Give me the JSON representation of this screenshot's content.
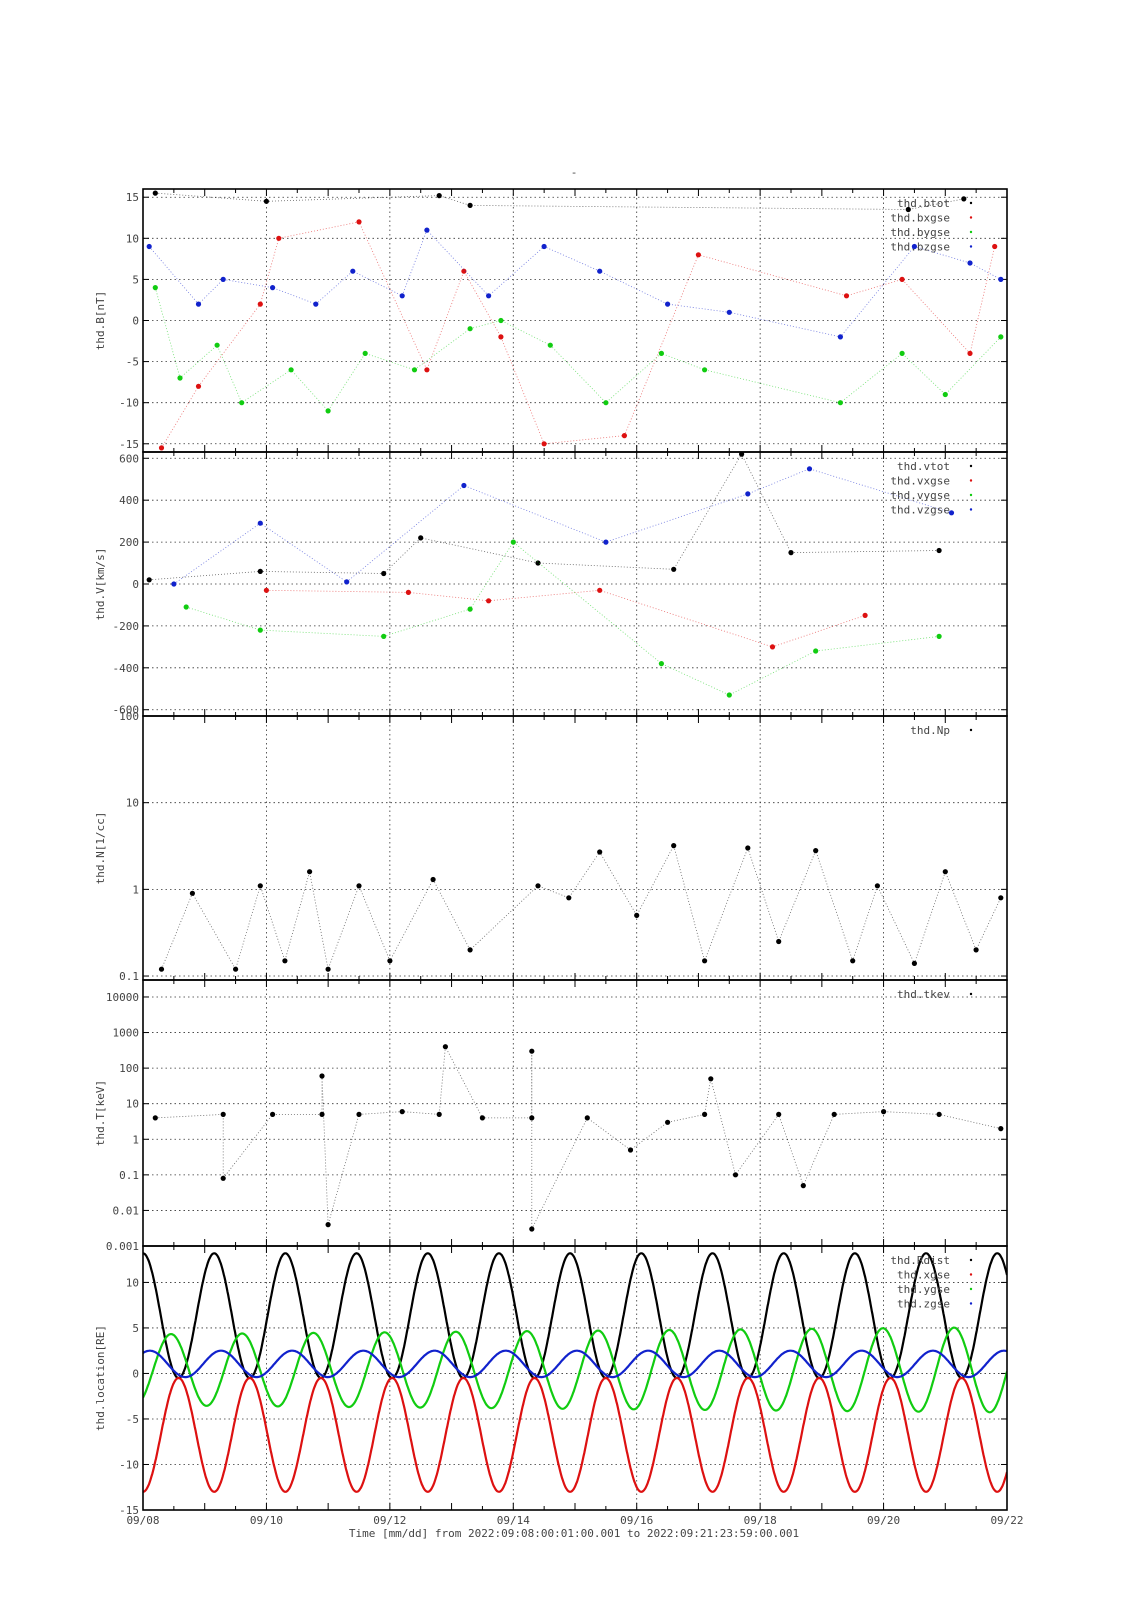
{
  "figure": {
    "top_mark": "-",
    "x_axis_title": "Time [mm/dd]  from 2022:09:08:00:01:00.001  to  2022:09:21:23:59:00.001",
    "x_tick_labels": [
      "09/08",
      "09/10",
      "09/12",
      "09/14",
      "09/16",
      "09/18",
      "09/20",
      "09/22"
    ]
  },
  "chart_data": [
    {
      "type": "scatter",
      "ylabel": "thd.B[nT]",
      "ylim": [
        -16,
        16
      ],
      "yticks": [
        -15,
        -10,
        -5,
        0,
        5,
        10,
        15
      ],
      "ytick_labels": [
        "-15",
        "-10",
        "-5",
        "0",
        "5",
        "10",
        "15"
      ],
      "xlim": [
        0,
        14
      ],
      "grid": true,
      "legend_placement": "top-right",
      "series": [
        {
          "name": "thd.btot",
          "color": "#000000",
          "points": [
            [
              0.2,
              15.5
            ],
            [
              2.0,
              14.5
            ],
            [
              4.8,
              15.2
            ],
            [
              5.3,
              14.0
            ],
            [
              12.4,
              13.5
            ],
            [
              13.3,
              14.8
            ]
          ]
        },
        {
          "name": "thd.bxgse",
          "color": "#dd1111",
          "points": [
            [
              0.3,
              -15.5
            ],
            [
              0.9,
              -8.0
            ],
            [
              1.9,
              2.0
            ],
            [
              2.2,
              10.0
            ],
            [
              3.5,
              12.0
            ],
            [
              4.6,
              -6.0
            ],
            [
              5.2,
              6.0
            ],
            [
              5.8,
              -2.0
            ],
            [
              6.5,
              -15.0
            ],
            [
              7.8,
              -14.0
            ],
            [
              9.0,
              8.0
            ],
            [
              11.4,
              3.0
            ],
            [
              12.3,
              5.0
            ],
            [
              13.4,
              -4.0
            ],
            [
              13.8,
              9.0
            ]
          ]
        },
        {
          "name": "thd.bygse",
          "color": "#11cc11",
          "points": [
            [
              0.2,
              4.0
            ],
            [
              0.6,
              -7.0
            ],
            [
              1.2,
              -3.0
            ],
            [
              1.6,
              -10.0
            ],
            [
              2.4,
              -6.0
            ],
            [
              3.0,
              -11.0
            ],
            [
              3.6,
              -4.0
            ],
            [
              4.4,
              -6.0
            ],
            [
              5.3,
              -1.0
            ],
            [
              5.8,
              0.0
            ],
            [
              6.6,
              -3.0
            ],
            [
              7.5,
              -10.0
            ],
            [
              8.4,
              -4.0
            ],
            [
              9.1,
              -6.0
            ],
            [
              11.3,
              -10.0
            ],
            [
              12.3,
              -4.0
            ],
            [
              13.0,
              -9.0
            ],
            [
              13.9,
              -2.0
            ]
          ]
        },
        {
          "name": "thd.bzgse",
          "color": "#1122cc",
          "points": [
            [
              0.1,
              9.0
            ],
            [
              0.9,
              2.0
            ],
            [
              1.3,
              5.0
            ],
            [
              2.1,
              4.0
            ],
            [
              2.8,
              2.0
            ],
            [
              3.4,
              6.0
            ],
            [
              4.2,
              3.0
            ],
            [
              4.6,
              11.0
            ],
            [
              5.6,
              3.0
            ],
            [
              6.5,
              9.0
            ],
            [
              7.4,
              6.0
            ],
            [
              8.5,
              2.0
            ],
            [
              9.5,
              1.0
            ],
            [
              11.3,
              -2.0
            ],
            [
              12.5,
              9.0
            ],
            [
              13.4,
              7.0
            ],
            [
              13.9,
              5.0
            ]
          ]
        }
      ]
    },
    {
      "type": "scatter",
      "ylabel": "thd.V[km/s]",
      "ylim": [
        -630,
        630
      ],
      "yticks": [
        -600,
        -400,
        -200,
        0,
        200,
        400,
        600
      ],
      "ytick_labels": [
        "-600",
        "-400",
        "-200",
        "0",
        "200",
        "400",
        "600"
      ],
      "xlim": [
        0,
        14
      ],
      "grid": true,
      "legend_placement": "top-right",
      "series": [
        {
          "name": "thd.vtot",
          "color": "#000000",
          "points": [
            [
              0.1,
              20
            ],
            [
              1.9,
              60
            ],
            [
              3.9,
              50
            ],
            [
              4.5,
              220
            ],
            [
              6.4,
              100
            ],
            [
              8.6,
              70
            ],
            [
              9.7,
              620
            ],
            [
              10.5,
              150
            ],
            [
              12.9,
              160
            ]
          ]
        },
        {
          "name": "thd.vxgse",
          "color": "#dd1111",
          "points": [
            [
              2.0,
              -30
            ],
            [
              4.3,
              -40
            ],
            [
              5.6,
              -80
            ],
            [
              7.4,
              -30
            ],
            [
              10.2,
              -300
            ],
            [
              11.7,
              -150
            ]
          ]
        },
        {
          "name": "thd.vygse",
          "color": "#11cc11",
          "points": [
            [
              0.7,
              -110
            ],
            [
              1.9,
              -220
            ],
            [
              3.9,
              -250
            ],
            [
              5.3,
              -120
            ],
            [
              6.0,
              200
            ],
            [
              8.4,
              -380
            ],
            [
              9.5,
              -530
            ],
            [
              10.9,
              -320
            ],
            [
              12.9,
              -250
            ]
          ]
        },
        {
          "name": "thd.vzgse",
          "color": "#1122cc",
          "points": [
            [
              0.5,
              0
            ],
            [
              1.9,
              290
            ],
            [
              3.3,
              10
            ],
            [
              5.2,
              470
            ],
            [
              7.5,
              200
            ],
            [
              9.8,
              430
            ],
            [
              10.8,
              550
            ],
            [
              13.1,
              340
            ]
          ]
        }
      ]
    },
    {
      "type": "scatter",
      "ylabel": "thd.N[1/cc]",
      "y_scale": "log",
      "ylim": [
        0.09,
        100
      ],
      "yticks": [
        0.1,
        1,
        10,
        100
      ],
      "ytick_labels": [
        "0.1",
        "1",
        "10",
        "100"
      ],
      "xlim": [
        0,
        14
      ],
      "grid": true,
      "legend_placement": "top-right",
      "series": [
        {
          "name": "thd.Np",
          "color": "#000000",
          "points": [
            [
              0.3,
              0.12
            ],
            [
              0.8,
              0.9
            ],
            [
              1.5,
              0.12
            ],
            [
              1.9,
              1.1
            ],
            [
              2.3,
              0.15
            ],
            [
              2.7,
              1.6
            ],
            [
              3.0,
              0.12
            ],
            [
              3.5,
              1.1
            ],
            [
              4.0,
              0.15
            ],
            [
              4.7,
              1.3
            ],
            [
              5.3,
              0.2
            ],
            [
              6.4,
              1.1
            ],
            [
              6.9,
              0.8
            ],
            [
              7.4,
              2.7
            ],
            [
              8.0,
              0.5
            ],
            [
              8.6,
              3.2
            ],
            [
              9.1,
              0.15
            ],
            [
              9.8,
              3.0
            ],
            [
              10.3,
              0.25
            ],
            [
              10.9,
              2.8
            ],
            [
              11.5,
              0.15
            ],
            [
              11.9,
              1.1
            ],
            [
              12.5,
              0.14
            ],
            [
              13.0,
              1.6
            ],
            [
              13.5,
              0.2
            ],
            [
              13.9,
              0.8
            ]
          ]
        }
      ]
    },
    {
      "type": "scatter",
      "ylabel": "thd.T[keV]",
      "y_scale": "log",
      "ylim": [
        0.001,
        30000
      ],
      "yticks": [
        0.001,
        0.01,
        0.1,
        1,
        10,
        100,
        1000,
        10000
      ],
      "ytick_labels": [
        "0.001",
        "0.01",
        "0.1",
        "1",
        "10",
        "100",
        "1000",
        "10000"
      ],
      "xlim": [
        0,
        14
      ],
      "grid": true,
      "legend_placement": "top-right",
      "series": [
        {
          "name": "thd.tkev",
          "color": "#000000",
          "points": [
            [
              0.2,
              4
            ],
            [
              1.3,
              5
            ],
            [
              1.3,
              0.08
            ],
            [
              2.1,
              5
            ],
            [
              2.9,
              5
            ],
            [
              3.5,
              5
            ],
            [
              4.2,
              6
            ],
            [
              4.8,
              5
            ],
            [
              5.5,
              4
            ],
            [
              6.3,
              4
            ],
            [
              7.2,
              4
            ],
            [
              7.9,
              0.5
            ],
            [
              8.5,
              3
            ],
            [
              9.1,
              5
            ],
            [
              9.6,
              0.1
            ],
            [
              10.3,
              5
            ],
            [
              10.7,
              0.05
            ],
            [
              11.2,
              5
            ],
            [
              12.0,
              6
            ],
            [
              12.9,
              5
            ],
            [
              13.9,
              2
            ],
            [
              4.9,
              400
            ],
            [
              6.3,
              300
            ],
            [
              2.9,
              60
            ],
            [
              9.2,
              50
            ],
            [
              3.0,
              0.004
            ],
            [
              6.3,
              0.003
            ]
          ]
        }
      ]
    },
    {
      "type": "line",
      "ylabel": "thd.location[RE]",
      "ylim": [
        -15,
        14
      ],
      "yticks": [
        -15,
        -10,
        -5,
        0,
        5,
        10
      ],
      "ytick_labels": [
        "-15",
        "-10",
        "-5",
        "0",
        "5",
        "10"
      ],
      "xlim": [
        0,
        14
      ],
      "grid": true,
      "legend_placement": "top-right",
      "orbit_period_days": 1.1535,
      "series": [
        {
          "name": "thd.Rdist",
          "color": "#000000",
          "max": 13.2,
          "min": -0.5
        },
        {
          "name": "thd.xgse",
          "color": "#dd1111",
          "max": -0.5,
          "min": -13.0
        },
        {
          "name": "thd.ygse",
          "color": "#11cc11",
          "max": 4.3,
          "min": -3.5
        },
        {
          "name": "thd.zgse",
          "color": "#1122cc",
          "max": 2.5,
          "min": -0.4
        }
      ]
    }
  ]
}
